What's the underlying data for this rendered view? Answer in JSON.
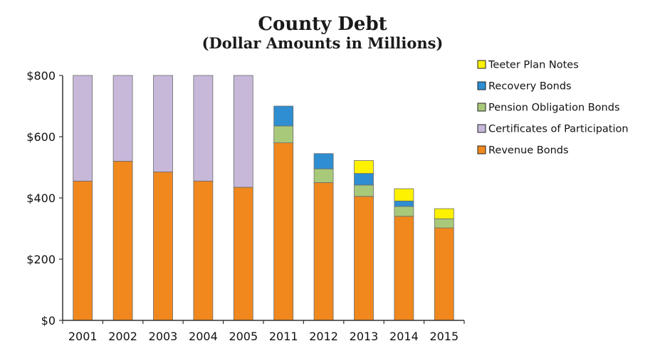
{
  "chart_data": {
    "type": "bar",
    "stacked": true,
    "title": "County Debt",
    "subtitle": "(Dollar Amounts in Millions)",
    "xlabel": "",
    "ylabel": "",
    "ylim": [
      0,
      800
    ],
    "yticks": [
      0,
      200,
      400,
      600,
      800
    ],
    "ytick_labels": [
      "$0",
      "$200",
      "$400",
      "$600",
      "$800"
    ],
    "grid": false,
    "legend_position": "right",
    "categories": [
      "2001",
      "2002",
      "2003",
      "2004",
      "2005",
      "2011",
      "2012",
      "2013",
      "2014",
      "2015"
    ],
    "series": [
      {
        "name": "Revenue Bonds",
        "color": "#F0881E",
        "values": [
          455,
          520,
          485,
          455,
          435,
          580,
          450,
          405,
          340,
          302
        ]
      },
      {
        "name": "Certificates of Participation",
        "color": "#C7B8DA",
        "values": [
          345,
          280,
          315,
          345,
          365,
          0,
          0,
          0,
          0,
          0
        ]
      },
      {
        "name": "Pension Obligation Bonds",
        "color": "#A9C97A",
        "values": [
          0,
          0,
          0,
          0,
          0,
          55,
          45,
          37,
          32,
          30
        ]
      },
      {
        "name": "Recovery Bonds",
        "color": "#2E8ED1",
        "values": [
          0,
          0,
          0,
          0,
          0,
          65,
          50,
          38,
          18,
          0
        ]
      },
      {
        "name": "Teeter Plan Notes",
        "color": "#FFF200",
        "values": [
          0,
          0,
          0,
          0,
          0,
          0,
          0,
          42,
          40,
          33
        ]
      }
    ],
    "legend_order": [
      "Teeter Plan Notes",
      "Recovery Bonds",
      "Pension Obligation Bonds",
      "Certificates of Participation",
      "Revenue Bonds"
    ]
  }
}
